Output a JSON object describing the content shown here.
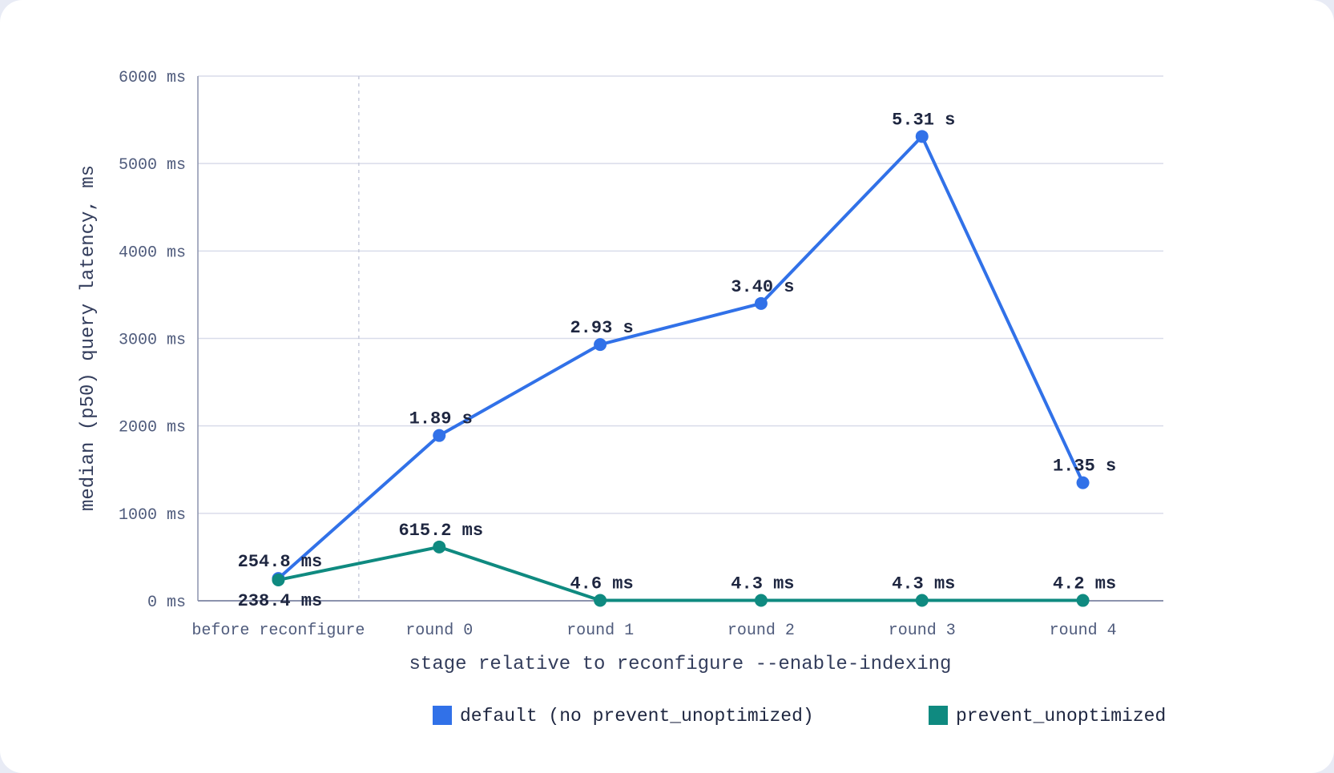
{
  "chart_data": {
    "type": "line",
    "categories": [
      "before reconfigure",
      "round 0",
      "round 1",
      "round 2",
      "round 3",
      "round 4"
    ],
    "xlabel": "stage relative to reconfigure --enable-indexing",
    "ylabel": "median (p50) query latency, ms",
    "ylim": [
      0,
      6000
    ],
    "yticks": [
      0,
      1000,
      2000,
      3000,
      4000,
      5000,
      6000
    ],
    "ytick_labels": [
      "0 ms",
      "1000 ms",
      "2000 ms",
      "3000 ms",
      "4000 ms",
      "5000 ms",
      "6000 ms"
    ],
    "grid": true,
    "legend_position": "bottom",
    "divider_after_category": "before reconfigure",
    "series": [
      {
        "name": "default (no prevent_unoptimized)",
        "color": "#3171e8",
        "values": [
          254.8,
          1890,
          2930,
          3400,
          5310,
          1350
        ],
        "labels": [
          "254.8 ms",
          "1.89 s",
          "2.93 s",
          "3.40 s",
          "5.31 s",
          "1.35 s"
        ],
        "label_position": "above"
      },
      {
        "name": "prevent_unoptimized",
        "color": "#0f8a80",
        "values": [
          238.4,
          615.2,
          4.6,
          4.3,
          4.3,
          4.2
        ],
        "labels": [
          "238.4 ms",
          "615.2 ms",
          "4.6 ms",
          "4.3 ms",
          "4.3 ms",
          "4.2 ms"
        ],
        "label_position": [
          "below",
          "above",
          "above",
          "above",
          "above",
          "above"
        ]
      }
    ]
  }
}
